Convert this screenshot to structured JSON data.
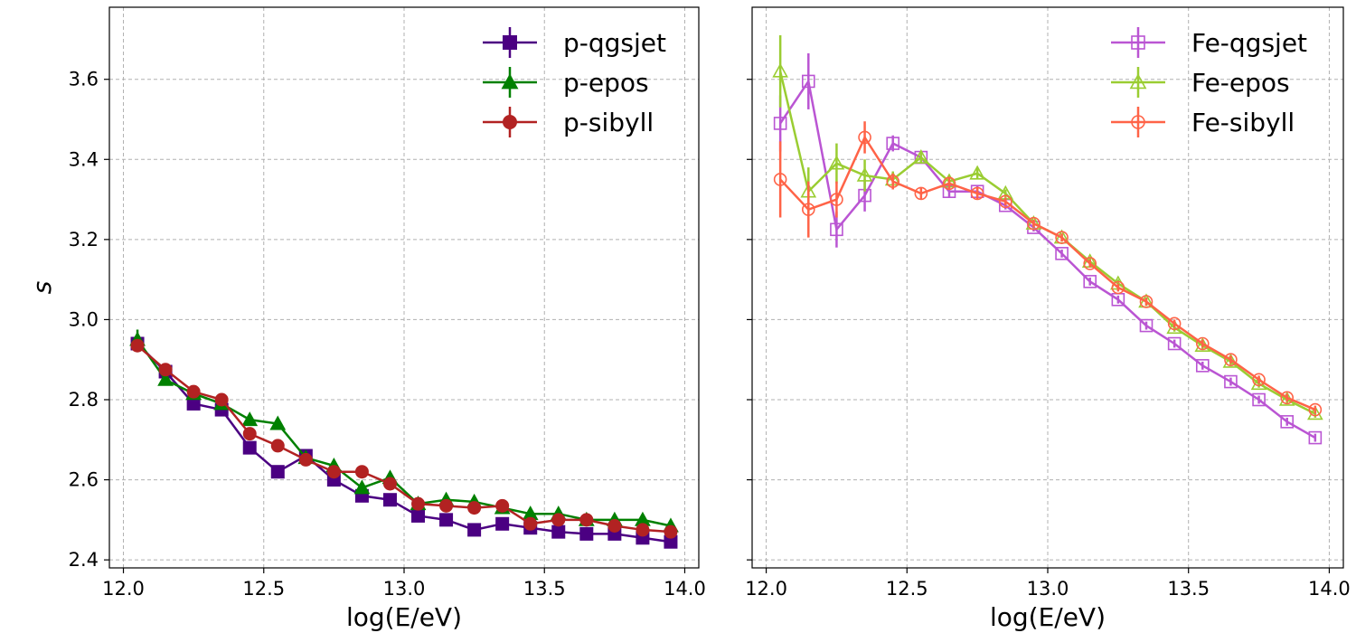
{
  "chart_data": [
    {
      "type": "line",
      "xlabel": "log(E/eV)",
      "ylabel": "s",
      "xlim": [
        11.95,
        14.05
      ],
      "ylim": [
        2.38,
        3.78
      ],
      "xticks": [
        "12.0",
        "12.5",
        "13.0",
        "13.5",
        "14.0"
      ],
      "yticks": [
        "2.4",
        "2.6",
        "2.8",
        "3.0",
        "3.2",
        "3.4",
        "3.6"
      ],
      "show_ytick_labels": true,
      "grid": true,
      "legend": "top-right",
      "x": [
        12.05,
        12.15,
        12.25,
        12.35,
        12.45,
        12.55,
        12.65,
        12.75,
        12.85,
        12.95,
        13.05,
        13.15,
        13.25,
        13.35,
        13.45,
        13.55,
        13.65,
        13.75,
        13.85,
        13.95
      ],
      "series": [
        {
          "name": "p-qgsjet",
          "color": "#4b0082",
          "marker": "square",
          "filled": true,
          "values": [
            2.94,
            2.87,
            2.79,
            2.775,
            2.68,
            2.62,
            2.66,
            2.6,
            2.56,
            2.55,
            2.51,
            2.5,
            2.475,
            2.49,
            2.48,
            2.47,
            2.465,
            2.465,
            2.455,
            2.445
          ],
          "errors": [
            0.015,
            0.01,
            0.01,
            0.01,
            0.01,
            0.01,
            0.01,
            0.01,
            0.01,
            0.01,
            0.01,
            0.01,
            0.01,
            0.01,
            0.01,
            0.01,
            0.01,
            0.01,
            0.01,
            0.01
          ]
        },
        {
          "name": "p-epos",
          "color": "#008000",
          "marker": "triangle",
          "filled": true,
          "values": [
            2.95,
            2.85,
            2.815,
            2.79,
            2.75,
            2.74,
            2.655,
            2.635,
            2.58,
            2.605,
            2.54,
            2.55,
            2.545,
            2.53,
            2.515,
            2.515,
            2.5,
            2.5,
            2.5,
            2.485
          ],
          "errors": [
            0.025,
            0.01,
            0.01,
            0.01,
            0.01,
            0.01,
            0.01,
            0.01,
            0.01,
            0.01,
            0.01,
            0.01,
            0.01,
            0.01,
            0.01,
            0.01,
            0.01,
            0.01,
            0.01,
            0.01
          ]
        },
        {
          "name": "p-sibyll",
          "color": "#b22222",
          "marker": "circle",
          "filled": true,
          "values": [
            2.935,
            2.875,
            2.82,
            2.8,
            2.715,
            2.685,
            2.65,
            2.62,
            2.62,
            2.59,
            2.54,
            2.535,
            2.53,
            2.535,
            2.49,
            2.5,
            2.5,
            2.485,
            2.475,
            2.47
          ],
          "errors": [
            0.015,
            0.01,
            0.01,
            0.01,
            0.01,
            0.01,
            0.01,
            0.01,
            0.01,
            0.01,
            0.01,
            0.01,
            0.01,
            0.01,
            0.01,
            0.01,
            0.01,
            0.01,
            0.01,
            0.01
          ]
        }
      ]
    },
    {
      "type": "line",
      "xlabel": "log(E/eV)",
      "ylabel": "",
      "xlim": [
        11.95,
        14.05
      ],
      "ylim": [
        2.38,
        3.78
      ],
      "xticks": [
        "12.0",
        "12.5",
        "13.0",
        "13.5",
        "14.0"
      ],
      "yticks": [
        "2.4",
        "2.6",
        "2.8",
        "3.0",
        "3.2",
        "3.4",
        "3.6"
      ],
      "show_ytick_labels": false,
      "grid": true,
      "legend": "top-right",
      "x": [
        12.05,
        12.15,
        12.25,
        12.35,
        12.45,
        12.55,
        12.65,
        12.75,
        12.85,
        12.95,
        13.05,
        13.15,
        13.25,
        13.35,
        13.45,
        13.55,
        13.65,
        13.75,
        13.85,
        13.95
      ],
      "series": [
        {
          "name": "Fe-qgsjet",
          "color": "#ba55d3",
          "marker": "square",
          "filled": false,
          "values": [
            3.49,
            3.595,
            3.225,
            3.31,
            3.44,
            3.405,
            3.32,
            3.32,
            3.285,
            3.23,
            3.165,
            3.095,
            3.05,
            2.985,
            2.94,
            2.885,
            2.845,
            2.8,
            2.745,
            2.705
          ],
          "errors": [
            0.07,
            0.07,
            0.045,
            0.04,
            0.02,
            0.015,
            0.015,
            0.015,
            0.01,
            0.01,
            0.01,
            0.01,
            0.01,
            0.01,
            0.01,
            0.01,
            0.01,
            0.01,
            0.01,
            0.01
          ]
        },
        {
          "name": "Fe-epos",
          "color": "#9acd32",
          "marker": "triangle",
          "filled": false,
          "values": [
            3.62,
            3.32,
            3.39,
            3.36,
            3.35,
            3.405,
            3.345,
            3.365,
            3.315,
            3.24,
            3.205,
            3.145,
            3.09,
            3.045,
            2.98,
            2.935,
            2.895,
            2.84,
            2.8,
            2.765
          ],
          "errors": [
            0.09,
            0.06,
            0.05,
            0.04,
            0.02,
            0.015,
            0.015,
            0.015,
            0.01,
            0.01,
            0.01,
            0.01,
            0.01,
            0.01,
            0.01,
            0.01,
            0.01,
            0.01,
            0.01,
            0.01
          ]
        },
        {
          "name": "Fe-sibyll",
          "color": "#ff6347",
          "marker": "circle",
          "filled": false,
          "values": [
            3.35,
            3.275,
            3.3,
            3.455,
            3.345,
            3.315,
            3.34,
            3.315,
            3.295,
            3.24,
            3.205,
            3.14,
            3.08,
            3.045,
            2.99,
            2.94,
            2.9,
            2.85,
            2.805,
            2.775
          ],
          "errors": [
            0.095,
            0.07,
            0.045,
            0.04,
            0.02,
            0.015,
            0.015,
            0.015,
            0.01,
            0.01,
            0.01,
            0.01,
            0.01,
            0.01,
            0.01,
            0.01,
            0.01,
            0.01,
            0.01,
            0.01
          ]
        }
      ]
    }
  ]
}
